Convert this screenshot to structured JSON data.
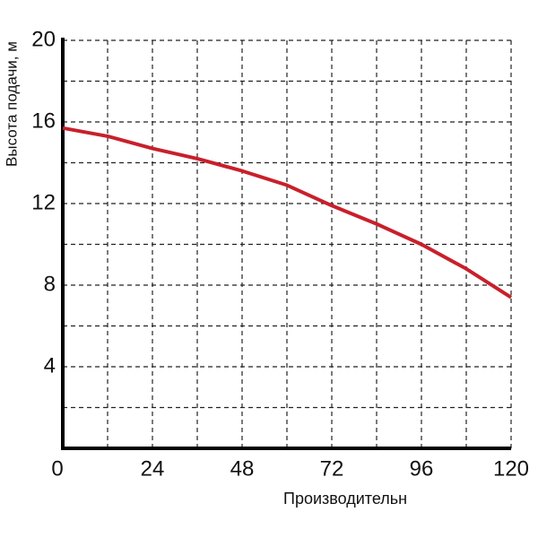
{
  "chart_data": {
    "type": "line",
    "x_label": "Производительн",
    "y_label": "Высота подачи, м",
    "x": [
      0,
      12,
      24,
      36,
      48,
      60,
      72,
      84,
      96,
      108,
      120
    ],
    "series": [
      {
        "color": "#c8202b",
        "values": [
          15.7,
          15.3,
          14.7,
          14.2,
          13.6,
          12.9,
          11.9,
          11.0,
          10.0,
          8.8,
          7.4
        ]
      }
    ],
    "xlim": [
      0,
      120
    ],
    "ylim": [
      0,
      20
    ],
    "xticks": [
      0,
      24,
      48,
      72,
      96,
      120
    ],
    "yticks": [
      4,
      8,
      12,
      16,
      20
    ],
    "grid": true
  }
}
